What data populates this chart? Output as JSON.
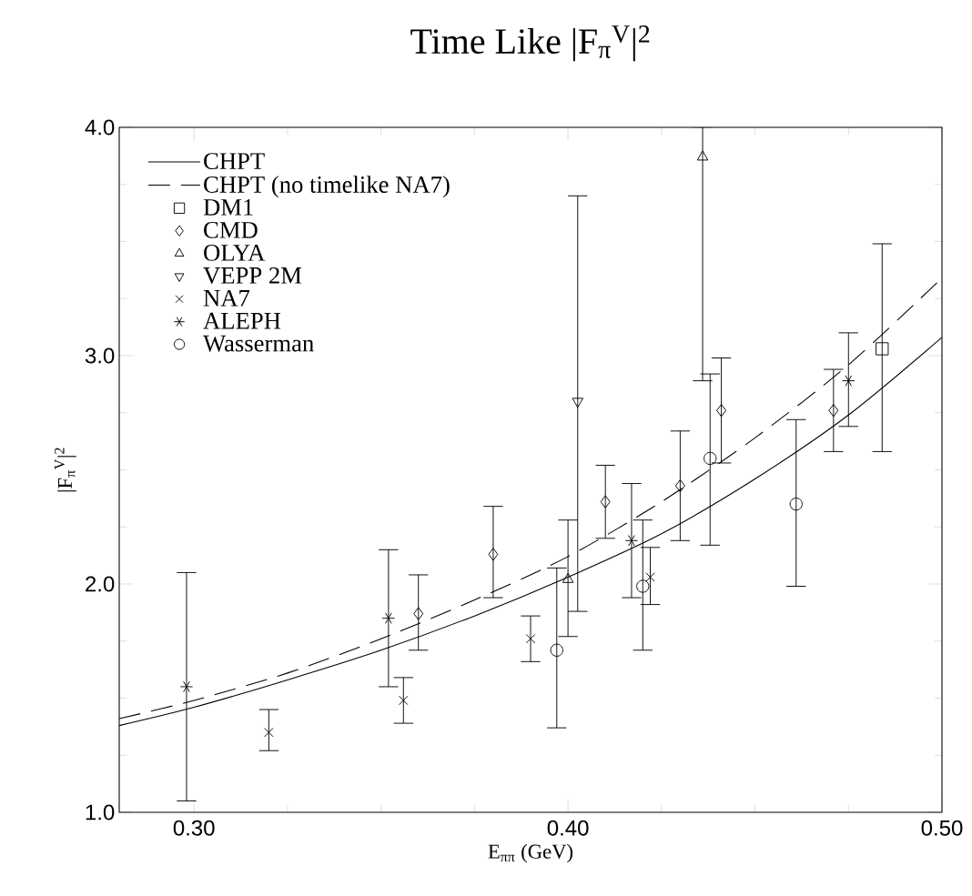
{
  "chart_data": {
    "type": "scatter",
    "title": "Time Like |F$_{π}$$^{V}$|$^{2}$",
    "xlabel": "E$_{ππ}$ (GeV)",
    "ylabel": "|F$_{π}$$^{V}$|$^{2}$",
    "xlim": [
      0.28,
      0.5
    ],
    "ylim": [
      1.0,
      4.0
    ],
    "xticks": [
      {
        "value": 0.3,
        "label": "0.30"
      },
      {
        "value": 0.325,
        "label": null
      },
      {
        "value": 0.35,
        "label": null
      },
      {
        "value": 0.375,
        "label": null
      },
      {
        "value": 0.4,
        "label": "0.40"
      },
      {
        "value": 0.425,
        "label": null
      },
      {
        "value": 0.45,
        "label": null
      },
      {
        "value": 0.475,
        "label": null
      },
      {
        "value": 0.5,
        "label": "0.50"
      }
    ],
    "yticks": [
      {
        "value": 1.0,
        "label": "1.0"
      },
      {
        "value": 1.25,
        "label": null
      },
      {
        "value": 1.5,
        "label": null
      },
      {
        "value": 1.75,
        "label": null
      },
      {
        "value": 2.0,
        "label": "2.0"
      },
      {
        "value": 2.25,
        "label": null
      },
      {
        "value": 2.5,
        "label": null
      },
      {
        "value": 2.75,
        "label": null
      },
      {
        "value": 3.0,
        "label": "3.0"
      },
      {
        "value": 3.25,
        "label": null
      },
      {
        "value": 3.5,
        "label": null
      },
      {
        "value": 3.75,
        "label": null
      },
      {
        "value": 4.0,
        "label": "4.0"
      }
    ],
    "grid": false,
    "legend": "top left",
    "series": [
      {
        "name": "CHPT",
        "type": "line",
        "color": "#000000",
        "line_style": "solid",
        "marker": "none",
        "x": [
          0.28,
          0.3,
          0.325,
          0.35,
          0.375,
          0.4,
          0.425,
          0.45,
          0.475,
          0.5
        ],
        "values": [
          1.38,
          1.46,
          1.58,
          1.71,
          1.86,
          2.03,
          2.22,
          2.46,
          2.74,
          3.08
        ]
      },
      {
        "name": "CHPT (no timelike NA7)",
        "type": "line",
        "color": "#000000",
        "line_style": "dashed",
        "marker": "none",
        "x": [
          0.28,
          0.3,
          0.325,
          0.35,
          0.375,
          0.4,
          0.425,
          0.45,
          0.475,
          0.5
        ],
        "values": [
          1.41,
          1.49,
          1.61,
          1.76,
          1.93,
          2.12,
          2.36,
          2.64,
          2.96,
          3.34
        ]
      },
      {
        "name": "DM1",
        "color": "#000000",
        "marker": "square",
        "x": [
          0.484
        ],
        "values": [
          3.03
        ],
        "errors": [
          [
            2.58,
            3.49
          ]
        ]
      },
      {
        "name": "CMD",
        "color": "#000000",
        "marker": "diamond",
        "x": [
          0.36,
          0.38,
          0.41,
          0.43,
          0.441,
          0.471
        ],
        "values": [
          1.87,
          2.13,
          2.36,
          2.43,
          2.76,
          2.76
        ],
        "errors": [
          [
            1.71,
            2.04
          ],
          [
            1.94,
            2.34
          ],
          [
            2.2,
            2.52
          ],
          [
            2.19,
            2.67
          ],
          [
            2.53,
            2.99
          ],
          [
            2.58,
            2.94
          ]
        ]
      },
      {
        "name": "OLYA",
        "color": "#000000",
        "marker": "triangle",
        "x": [
          0.4,
          0.436
        ],
        "values": [
          2.02,
          3.87
        ],
        "errors": [
          [
            1.77,
            2.28
          ],
          [
            2.89,
            4.0
          ]
        ]
      },
      {
        "name": "VEPP 2M",
        "color": "#000000",
        "marker": "triangle-down",
        "x": [
          0.4026
        ],
        "values": [
          2.8
        ],
        "errors": [
          [
            1.88,
            3.7
          ]
        ]
      },
      {
        "name": "NA7",
        "color": "#000000",
        "marker": "cross",
        "x": [
          0.32,
          0.356,
          0.39,
          0.422
        ],
        "values": [
          1.35,
          1.49,
          1.76,
          2.03
        ],
        "errors": [
          [
            1.27,
            1.45
          ],
          [
            1.39,
            1.59
          ],
          [
            1.66,
            1.86
          ],
          [
            1.91,
            2.16
          ]
        ]
      },
      {
        "name": "ALEPH",
        "color": "#000000",
        "x": [
          0.298,
          0.352,
          0.417,
          0.475
        ],
        "values": [
          1.55,
          1.85,
          2.19,
          2.89
        ],
        "errors": [
          [
            1.05,
            2.05
          ],
          [
            1.55,
            2.15
          ],
          [
            1.94,
            2.44
          ],
          [
            2.69,
            3.1
          ]
        ]
      },
      {
        "name": "Wasserman",
        "color": "#000000",
        "marker": "circle",
        "x": [
          0.397,
          0.42,
          0.438,
          0.461
        ],
        "values": [
          1.71,
          1.99,
          2.55,
          2.35
        ],
        "errors": [
          [
            1.37,
            2.07
          ],
          [
            1.71,
            2.28
          ],
          [
            2.17,
            2.92
          ],
          [
            1.99,
            2.72
          ]
        ]
      }
    ]
  }
}
